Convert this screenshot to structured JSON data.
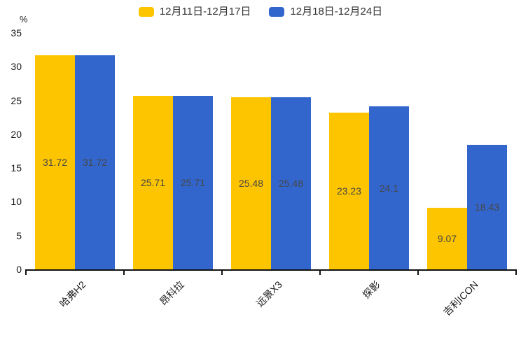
{
  "chart_data": {
    "type": "bar",
    "title": "",
    "ylabel": "%",
    "xlabel": "",
    "ylim": [
      0,
      35
    ],
    "yticks": [
      0,
      5,
      10,
      15,
      20,
      25,
      30,
      35
    ],
    "grid": false,
    "legend_position": "top",
    "categories": [
      "哈弗H2",
      "昂科拉",
      "远景X3",
      "探影",
      "吉利ICON"
    ],
    "series": [
      {
        "name": "12月11日-12月17日",
        "color": "#FDC500",
        "values": [
          31.72,
          25.71,
          25.48,
          23.23,
          9.07
        ]
      },
      {
        "name": "12月18日-12月24日",
        "color": "#3366CC",
        "values": [
          31.72,
          25.71,
          25.48,
          24.1,
          18.43
        ]
      }
    ],
    "value_label_color": "#464646",
    "axis_color": "#111111"
  }
}
